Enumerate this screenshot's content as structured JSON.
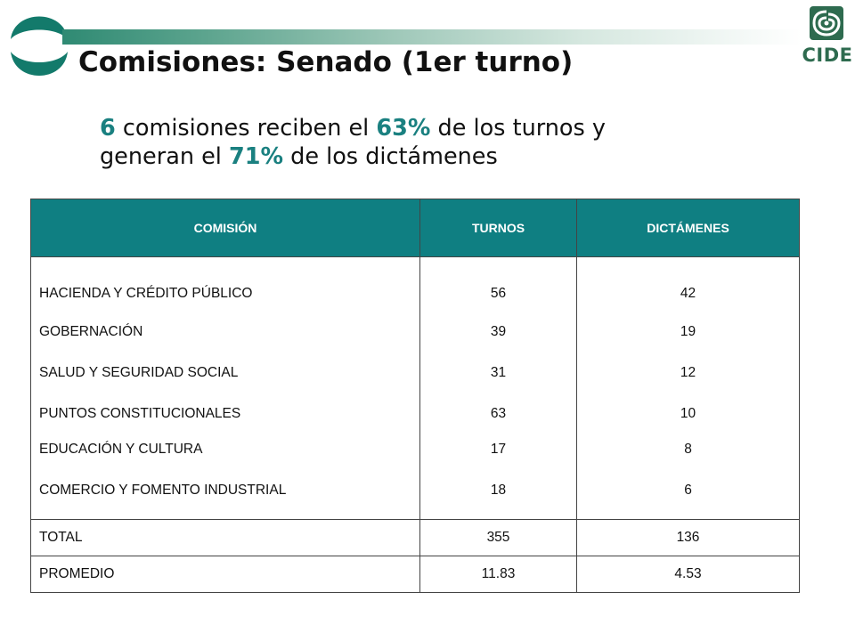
{
  "slide": {
    "title": "Comisiones: Senado (1er turno)",
    "subtitle": {
      "line1": [
        {
          "text": "6",
          "highlight": true
        },
        {
          "text": " comisiones reciben el ",
          "highlight": false
        },
        {
          "text": "63%",
          "highlight": true
        },
        {
          "text": " de los turnos y",
          "highlight": false
        }
      ],
      "line2": [
        {
          "text": "generan el ",
          "highlight": false
        },
        {
          "text": "71%",
          "highlight": true
        },
        {
          "text": " de los dictámenes",
          "highlight": false
        }
      ]
    },
    "logo_right": {
      "text": "CIDE"
    }
  },
  "table": {
    "headers": [
      "COMISIÓN",
      "TURNOS",
      "DICTÁMENES"
    ],
    "rows": [
      {
        "comision": "HACIENDA Y CRÉDITO PÚBLICO",
        "turnos": "56",
        "dictamenes": "42"
      },
      {
        "comision": "GOBERNACIÓN",
        "turnos": "39",
        "dictamenes": "19"
      },
      {
        "comision": "SALUD Y SEGURIDAD SOCIAL",
        "turnos": "31",
        "dictamenes": "12"
      },
      {
        "comision": "PUNTOS CONSTITUCIONALES",
        "turnos": "63",
        "dictamenes": "10"
      },
      {
        "comision": "EDUCACIÓN Y CULTURA",
        "turnos": "17",
        "dictamenes": "8"
      },
      {
        "comision": "COMERCIO Y FOMENTO INDUSTRIAL",
        "turnos": "18",
        "dictamenes": "6"
      }
    ],
    "total": {
      "label": "TOTAL",
      "turnos": "355",
      "dictamenes": "136"
    },
    "promedio": {
      "label": "PROMEDIO",
      "turnos": "11.83",
      "dictamenes": "4.53"
    }
  },
  "colors": {
    "header_fill": "#0f7f82",
    "highlight_text": "#1a8080",
    "logo_teal": "#137a6b",
    "cide_green": "#2e6b4f"
  }
}
